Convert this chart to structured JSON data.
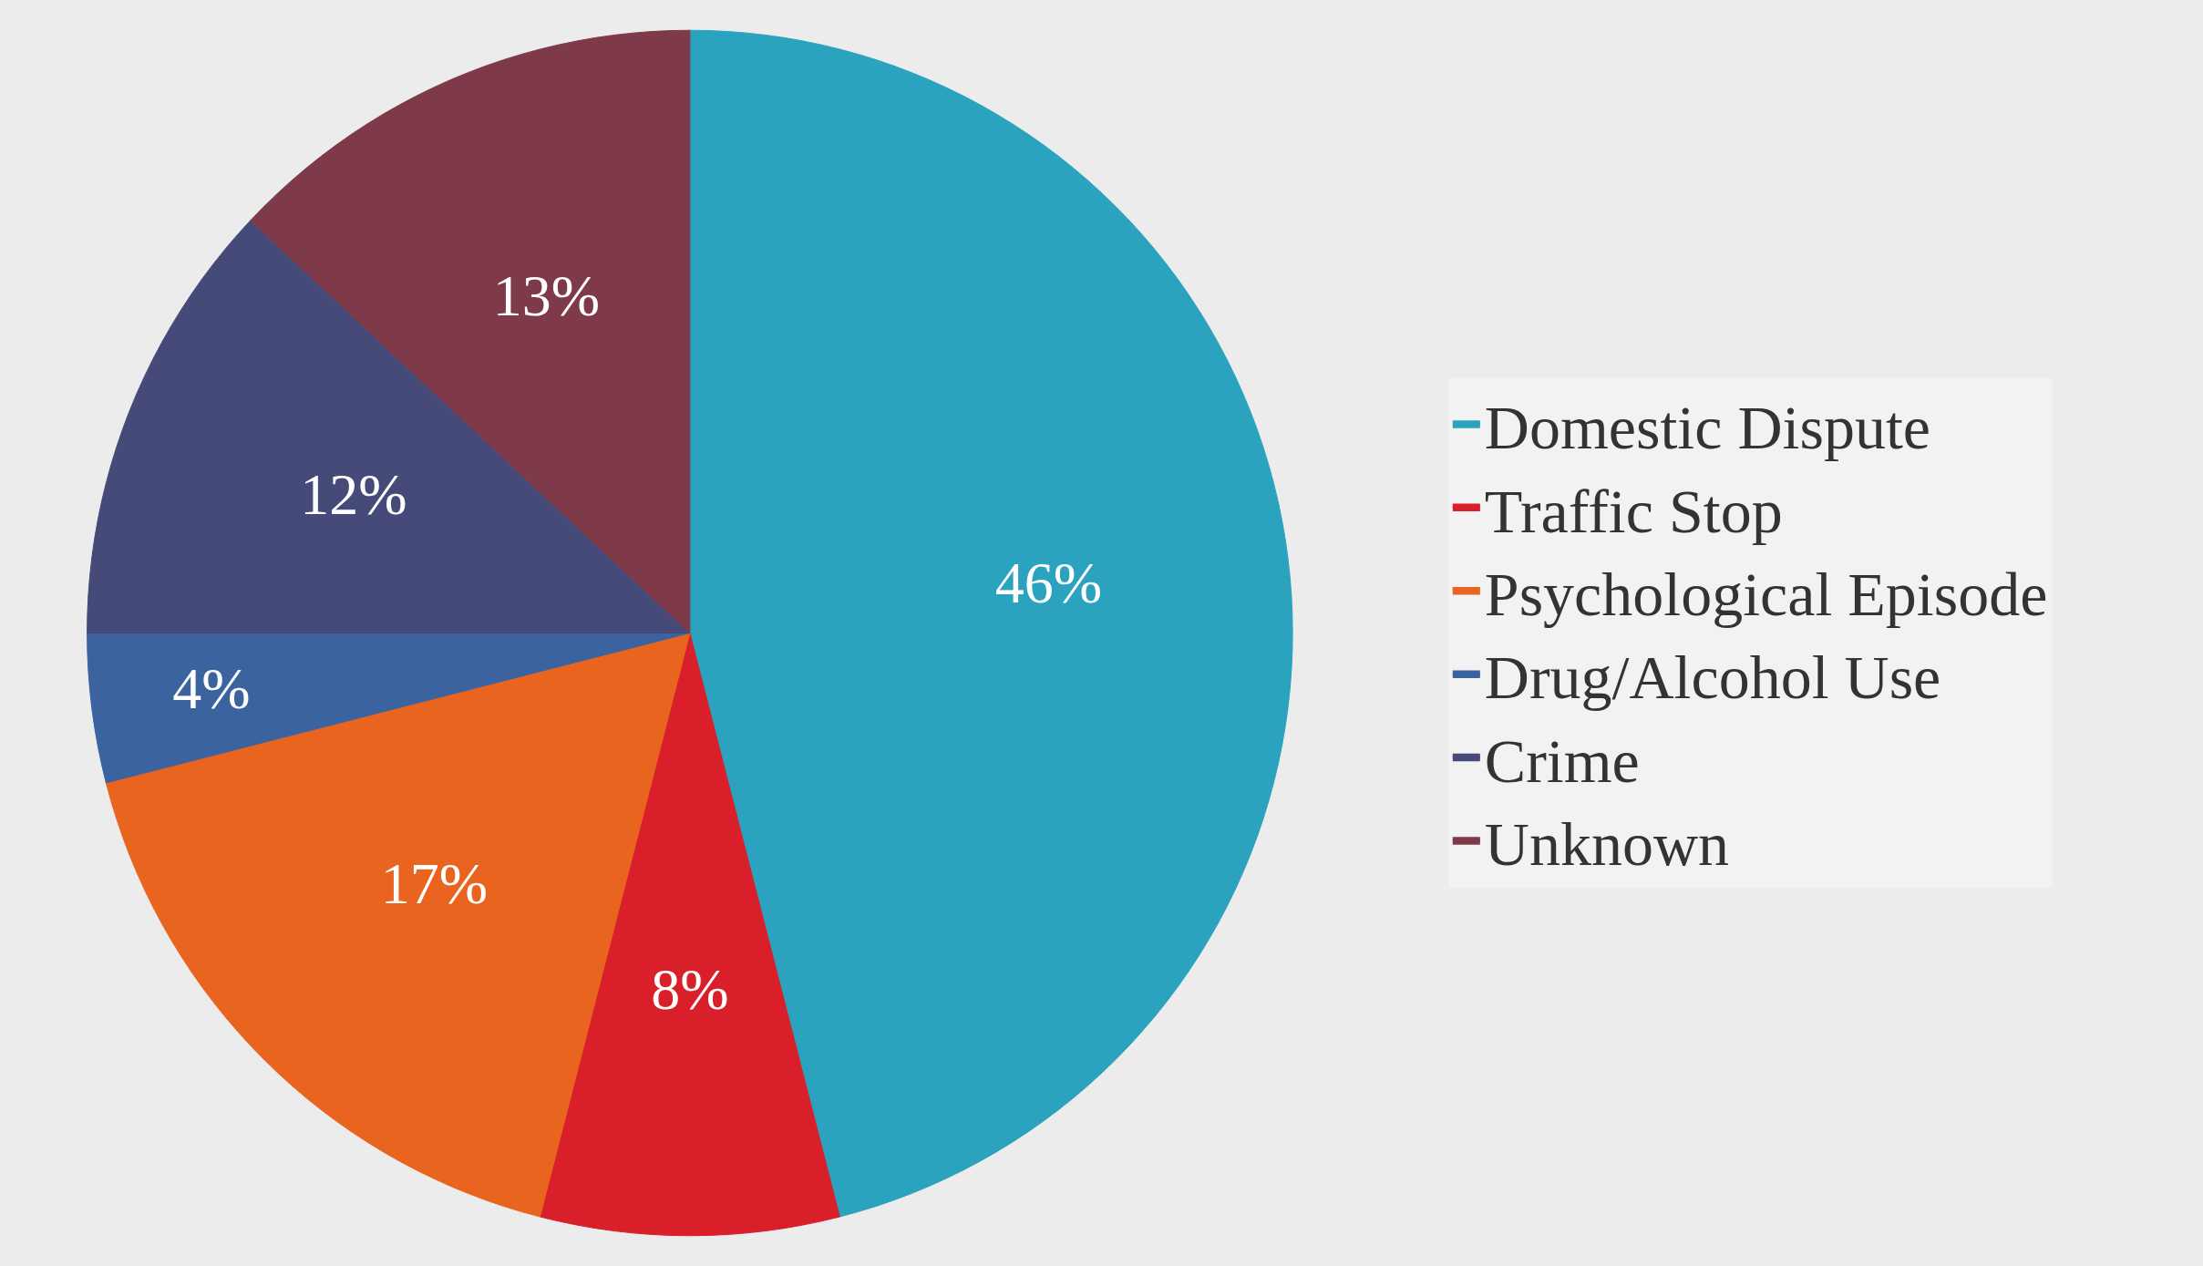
{
  "chart_data": {
    "type": "pie",
    "categories": [
      "Domestic Dispute",
      "Traffic Stop",
      "Psychological Episode",
      "Drug/Alcohol Use",
      "Crime",
      "Unknown"
    ],
    "values": [
      46,
      8,
      17,
      4,
      12,
      13
    ],
    "value_labels": [
      "46%",
      "8%",
      "17%",
      "4%",
      "12%",
      "13%"
    ],
    "colors": [
      "#2ba3bf",
      "#d91f2a",
      "#e8641f",
      "#3a63a0",
      "#464a78",
      "#7f3a4a"
    ],
    "legend": "right"
  }
}
